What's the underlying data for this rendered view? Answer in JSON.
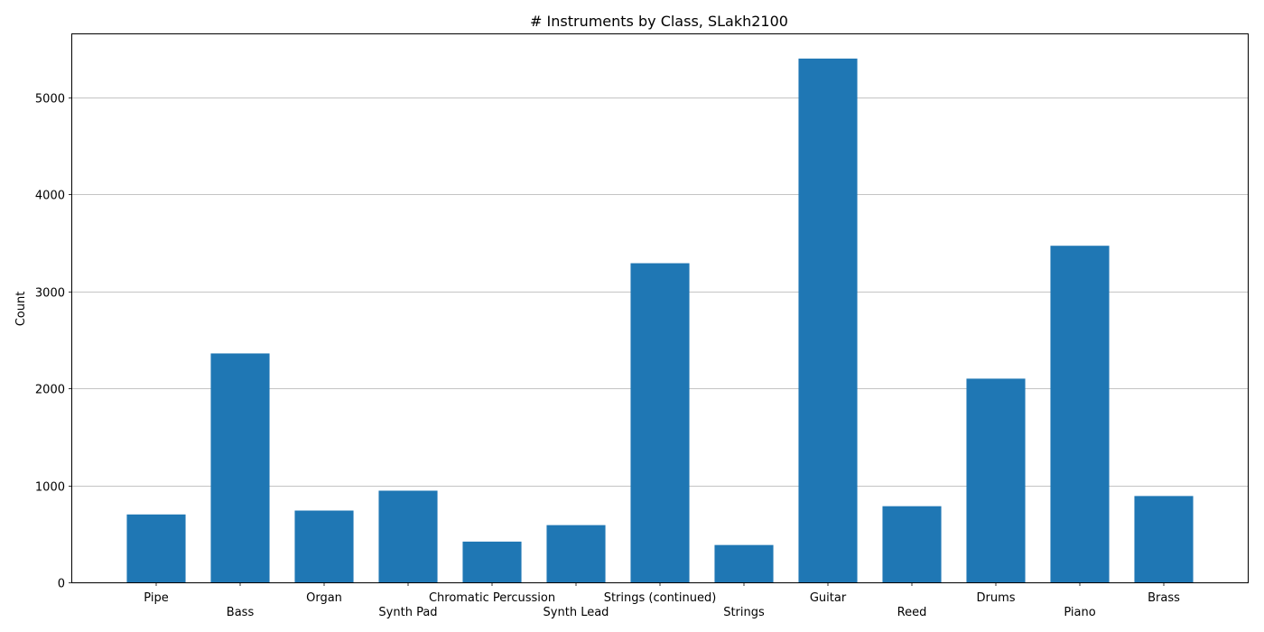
{
  "chart_data": {
    "type": "bar",
    "title": "# Instruments by Class, SLakh2100",
    "xlabel": "",
    "ylabel": "Count",
    "categories": [
      "Pipe",
      "Bass",
      "Organ",
      "Synth Pad",
      "Chromatic Percussion",
      "Synth Lead",
      "Strings (continued)",
      "Strings",
      "Guitar",
      "Reed",
      "Drums",
      "Piano",
      "Brass"
    ],
    "values": [
      700,
      2360,
      740,
      945,
      420,
      590,
      3290,
      385,
      5400,
      785,
      2100,
      3470,
      890
    ],
    "ylim": [
      0,
      5650
    ],
    "yticks": [
      0,
      1000,
      2000,
      3000,
      4000,
      5000
    ],
    "grid": "y",
    "bar_color": "#1f77b4"
  }
}
